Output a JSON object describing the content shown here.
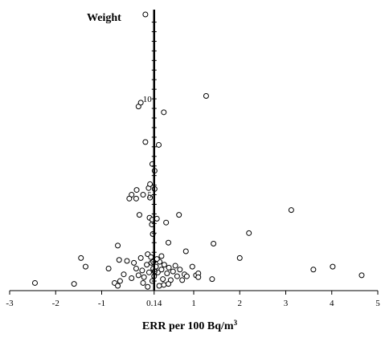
{
  "chart_data": {
    "type": "scatter",
    "xlabel": "ERR per 100 Bq/m",
    "xlabel_sup": "3",
    "ylabel": "Weight",
    "xlim": [
      -3,
      5
    ],
    "ylim": [
      0,
      14.4
    ],
    "x_ticks": [
      {
        "value": -3,
        "label": "-3"
      },
      {
        "value": -2,
        "label": "-2"
      },
      {
        "value": -1,
        "label": "-1"
      },
      {
        "value": 0.14,
        "label": "0.14"
      },
      {
        "value": 1,
        "label": "1"
      },
      {
        "value": 2,
        "label": "2"
      },
      {
        "value": 3,
        "label": "3"
      },
      {
        "value": 4,
        "label": "4"
      },
      {
        "value": 5,
        "label": "5"
      }
    ],
    "y_ticks": [
      {
        "value": 5,
        "label": "5"
      },
      {
        "value": 10,
        "label": "10"
      }
    ],
    "grid": false,
    "points": [
      [
        -0.05,
        14.4
      ],
      [
        -0.2,
        9.6
      ],
      [
        -0.15,
        9.8
      ],
      [
        1.27,
        10.15
      ],
      [
        0.35,
        9.3
      ],
      [
        -0.05,
        7.75
      ],
      [
        0.24,
        7.6
      ],
      [
        0.1,
        6.6
      ],
      [
        0.15,
        6.25
      ],
      [
        0.02,
        5.35
      ],
      [
        0.05,
        5.55
      ],
      [
        0.15,
        5.3
      ],
      [
        -0.24,
        5.25
      ],
      [
        -0.35,
        5.0
      ],
      [
        -0.25,
        4.8
      ],
      [
        -0.4,
        4.8
      ],
      [
        -0.1,
        5.0
      ],
      [
        0.05,
        4.85
      ],
      [
        -0.18,
        3.95
      ],
      [
        0.04,
        3.8
      ],
      [
        0.1,
        3.7
      ],
      [
        0.2,
        3.75
      ],
      [
        0.09,
        3.45
      ],
      [
        0.4,
        3.55
      ],
      [
        0.68,
        3.95
      ],
      [
        3.12,
        4.2
      ],
      [
        2.2,
        3.0
      ],
      [
        1.43,
        2.45
      ],
      [
        0.45,
        2.5
      ],
      [
        0.11,
        2.95
      ],
      [
        -0.65,
        2.35
      ],
      [
        -0.45,
        1.55
      ],
      [
        -0.62,
        1.6
      ],
      [
        -0.85,
        1.15
      ],
      [
        0.83,
        2.05
      ],
      [
        -1.45,
        1.7
      ],
      [
        -1.35,
        1.25
      ],
      [
        2.0,
        1.7
      ],
      [
        3.6,
        1.1
      ],
      [
        4.02,
        1.25
      ],
      [
        4.65,
        0.8
      ],
      [
        -2.45,
        0.4
      ],
      [
        -1.6,
        0.35
      ],
      [
        -0.72,
        0.4
      ],
      [
        -0.65,
        0.25
      ],
      [
        -0.6,
        0.5
      ],
      [
        -0.52,
        0.85
      ],
      [
        -0.35,
        0.65
      ],
      [
        -0.25,
        1.15
      ],
      [
        -0.2,
        0.8
      ],
      [
        -0.12,
        1.05
      ],
      [
        -0.08,
        0.7
      ],
      [
        -0.02,
        1.35
      ],
      [
        0.03,
        0.95
      ],
      [
        0.08,
        1.45
      ],
      [
        0.12,
        1.15
      ],
      [
        0.14,
        0.75
      ],
      [
        0.18,
        1.25
      ],
      [
        0.22,
        0.95
      ],
      [
        0.26,
        1.5
      ],
      [
        0.3,
        1.1
      ],
      [
        0.33,
        0.6
      ],
      [
        0.36,
        1.35
      ],
      [
        0.42,
        0.9
      ],
      [
        0.46,
        1.2
      ],
      [
        0.5,
        0.55
      ],
      [
        0.55,
        1.0
      ],
      [
        0.6,
        1.3
      ],
      [
        0.64,
        0.75
      ],
      [
        0.7,
        1.1
      ],
      [
        0.75,
        0.55
      ],
      [
        0.8,
        0.85
      ],
      [
        0.85,
        0.75
      ],
      [
        0.97,
        1.25
      ],
      [
        1.05,
        0.8
      ],
      [
        1.1,
        0.9
      ],
      [
        1.4,
        0.6
      ],
      [
        -0.15,
        1.7
      ],
      [
        0.0,
        1.9
      ],
      [
        0.07,
        1.75
      ],
      [
        0.2,
        1.65
      ],
      [
        0.3,
        1.8
      ],
      [
        0.1,
        0.5
      ],
      [
        0.35,
        0.3
      ],
      [
        -0.1,
        0.4
      ],
      [
        0.0,
        0.2
      ],
      [
        0.25,
        0.25
      ],
      [
        -0.3,
        1.45
      ],
      [
        0.15,
        1.0
      ],
      [
        0.45,
        0.35
      ],
      [
        1.1,
        0.7
      ],
      [
        0.12,
        1.5
      ]
    ]
  }
}
